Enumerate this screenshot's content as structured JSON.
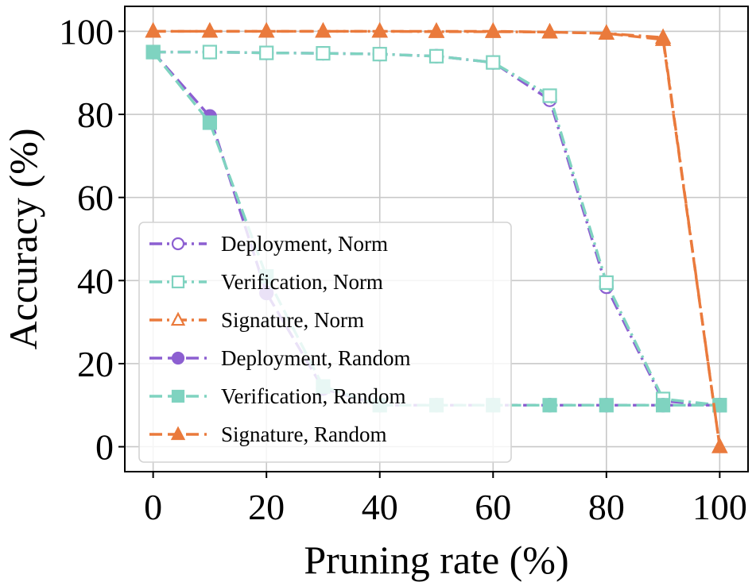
{
  "chart_data": {
    "type": "line",
    "title": "",
    "xlabel": "Pruning rate (%)",
    "ylabel": "Accuracy (%)",
    "xlim": [
      -5,
      105
    ],
    "ylim": [
      -6,
      106
    ],
    "xticks": [
      0,
      20,
      40,
      60,
      80,
      100
    ],
    "yticks": [
      0,
      20,
      40,
      60,
      80,
      100
    ],
    "grid": true,
    "legend_position": "lower-left",
    "colors": {
      "purple": "#8c5fd1",
      "teal": "#7fd3c0",
      "orange": "#ea7a3c"
    },
    "series": [
      {
        "name": "Deployment, Norm",
        "color": "#8c5fd1",
        "linestyle": "dashdot",
        "marker": "circle",
        "filled": false,
        "x": [
          0,
          10,
          20,
          30,
          40,
          50,
          60,
          70,
          80,
          90,
          100
        ],
        "y": [
          95,
          95,
          94.8,
          94.7,
          94.5,
          94,
          92.5,
          83.5,
          38.5,
          11,
          10
        ]
      },
      {
        "name": "Verification, Norm",
        "color": "#7fd3c0",
        "linestyle": "dashdot",
        "marker": "square",
        "filled": false,
        "x": [
          0,
          10,
          20,
          30,
          40,
          50,
          60,
          70,
          80,
          90,
          100
        ],
        "y": [
          95,
          95,
          94.8,
          94.7,
          94.5,
          94,
          92.5,
          84.5,
          39.5,
          11.5,
          10
        ]
      },
      {
        "name": "Signature, Norm",
        "color": "#ea7a3c",
        "linestyle": "dashdot",
        "marker": "triangle",
        "filled": false,
        "x": [
          0,
          10,
          20,
          30,
          40,
          50,
          60,
          70,
          80,
          90,
          100
        ],
        "y": [
          100,
          100,
          100,
          100,
          100,
          99.9,
          99.9,
          99.8,
          99.5,
          98.5,
          0
        ]
      },
      {
        "name": "Deployment, Random",
        "color": "#8c5fd1",
        "linestyle": "dashed",
        "marker": "circle",
        "filled": true,
        "x": [
          0,
          10,
          20,
          30,
          40,
          50,
          60,
          70,
          80,
          90,
          100
        ],
        "y": [
          95,
          79.5,
          37,
          14,
          10,
          10,
          10,
          10,
          10,
          10,
          10
        ]
      },
      {
        "name": "Verification, Random",
        "color": "#7fd3c0",
        "linestyle": "dashed",
        "marker": "square",
        "filled": true,
        "x": [
          0,
          10,
          20,
          30,
          40,
          50,
          60,
          70,
          80,
          90,
          100
        ],
        "y": [
          95,
          78,
          41,
          14.5,
          10,
          10,
          10,
          10,
          10,
          10,
          10
        ]
      },
      {
        "name": "Signature, Random",
        "color": "#ea7a3c",
        "linestyle": "dashed",
        "marker": "triangle",
        "filled": true,
        "x": [
          0,
          10,
          20,
          30,
          40,
          50,
          60,
          70,
          80,
          90,
          100
        ],
        "y": [
          100,
          100,
          100,
          100,
          100,
          100,
          100,
          99.8,
          99.5,
          98,
          0
        ]
      }
    ]
  }
}
